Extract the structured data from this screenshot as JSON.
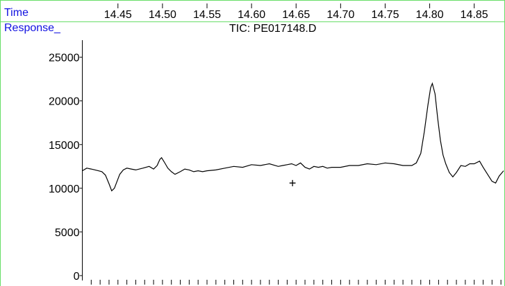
{
  "labels": {
    "time": "Time",
    "response": "Response_",
    "title": "TIC: PE017148.D",
    "marker": "+"
  },
  "colors": {
    "axis_label": "#1010e0",
    "frame_border": "#66dd66",
    "trace": "#000000"
  },
  "chart_data": {
    "type": "line",
    "title": "TIC: PE017148.D",
    "xlabel": "Time",
    "ylabel": "Response_",
    "x_tick_labels": [
      "14.45",
      "14.50",
      "14.55",
      "14.60",
      "14.65",
      "14.70",
      "14.75",
      "14.80",
      "14.85"
    ],
    "x_ticks": [
      14.45,
      14.5,
      14.55,
      14.6,
      14.65,
      14.7,
      14.75,
      14.8,
      14.85
    ],
    "y_tick_labels": [
      "0",
      "5000",
      "10000",
      "15000",
      "20000",
      "25000"
    ],
    "y_ticks": [
      0,
      5000,
      10000,
      15000,
      20000,
      25000
    ],
    "xlim": [
      14.41,
      14.883
    ],
    "ylim": [
      0,
      26000
    ],
    "grid": false,
    "marker_point": {
      "x": 14.646,
      "y": 10600,
      "label": "+"
    },
    "series": [
      {
        "x": [
          14.41,
          14.415,
          14.42,
          14.428,
          14.432,
          14.436,
          14.44,
          14.443,
          14.446,
          14.449,
          14.452,
          14.456,
          14.46,
          14.465,
          14.47,
          14.478,
          14.485,
          14.49,
          14.494,
          14.497,
          14.499,
          14.502,
          14.506,
          14.51,
          14.514,
          14.52,
          14.525,
          14.53,
          14.535,
          14.54,
          14.545,
          14.55,
          14.56,
          14.57,
          14.58,
          14.59,
          14.6,
          14.61,
          14.62,
          14.63,
          14.635,
          14.64,
          14.645,
          14.65,
          14.655,
          14.66,
          14.665,
          14.67,
          14.675,
          14.68,
          14.685,
          14.69,
          14.7,
          14.71,
          14.72,
          14.73,
          14.74,
          14.75,
          14.76,
          14.77,
          14.78,
          14.785,
          14.79,
          14.794,
          14.798,
          14.801,
          14.803,
          14.806,
          14.809,
          14.812,
          14.815,
          14.818,
          14.822,
          14.826,
          14.83,
          14.835,
          14.84,
          14.845,
          14.85,
          14.856,
          14.86,
          14.865,
          14.87,
          14.874,
          14.878,
          14.883
        ],
        "y": [
          12000,
          12300,
          12200,
          12000,
          11900,
          11500,
          10500,
          9700,
          10000,
          10800,
          11600,
          12100,
          12300,
          12200,
          12100,
          12300,
          12500,
          12200,
          12600,
          13300,
          13500,
          13000,
          12300,
          11900,
          11600,
          11900,
          12200,
          12100,
          11900,
          12000,
          11900,
          12000,
          12100,
          12300,
          12500,
          12400,
          12700,
          12600,
          12800,
          12500,
          12600,
          12700,
          12800,
          12600,
          12900,
          12400,
          12200,
          12500,
          12400,
          12500,
          12300,
          12400,
          12400,
          12600,
          12600,
          12800,
          12700,
          12900,
          12800,
          12600,
          12600,
          12900,
          14000,
          16500,
          19500,
          21500,
          22000,
          20800,
          18000,
          15500,
          13800,
          12800,
          11800,
          11300,
          11800,
          12600,
          12500,
          12800,
          12800,
          13100,
          12400,
          11600,
          10800,
          10600,
          11400,
          12000
        ]
      }
    ]
  }
}
